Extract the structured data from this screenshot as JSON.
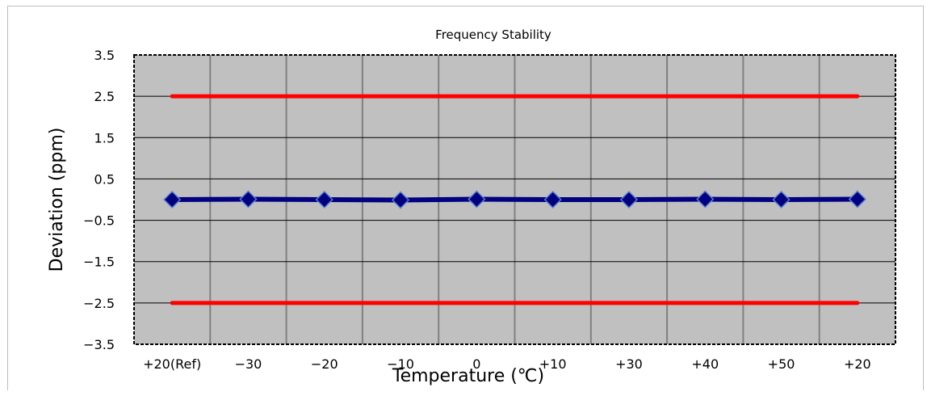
{
  "chart_data": {
    "type": "line",
    "title": "Frequency Stability",
    "xlabel": "Temperature (℃)",
    "ylabel": "Deviation (ppm)",
    "categories": [
      "+20(Ref)",
      "−30",
      "−20",
      "−10",
      "0",
      "+10",
      "+30",
      "+40",
      "+50",
      "+20"
    ],
    "ylim": [
      -3.5,
      3.5
    ],
    "yticks": [
      3.5,
      2.5,
      1.5,
      0.5,
      -0.5,
      -1.5,
      -2.5,
      -3.5
    ],
    "ytick_labels": [
      "3.5",
      "2.5",
      "1.5",
      "0.5",
      "−0.5",
      "−1.5",
      "−2.5",
      "−3.5"
    ],
    "grid": true,
    "series": [
      {
        "values": [
          0.0,
          0.01,
          0.0,
          -0.01,
          0.01,
          0.0,
          0.0,
          0.01,
          0.0,
          0.01
        ],
        "color": "#000080",
        "marker": "diamond"
      },
      {
        "values": [
          2.5,
          2.5,
          2.5,
          2.5,
          2.5,
          2.5,
          2.5,
          2.5,
          2.5,
          2.5
        ],
        "color": "#ff0000",
        "marker": "none"
      },
      {
        "values": [
          -2.5,
          -2.5,
          -2.5,
          -2.5,
          -2.5,
          -2.5,
          -2.5,
          -2.5,
          -2.5,
          -2.5
        ],
        "color": "#ff0000",
        "marker": "none"
      }
    ],
    "colors": {
      "plot_bg": "#c0c0c0",
      "grid": "#808080",
      "marker_edge": "#5b7fd0"
    }
  }
}
